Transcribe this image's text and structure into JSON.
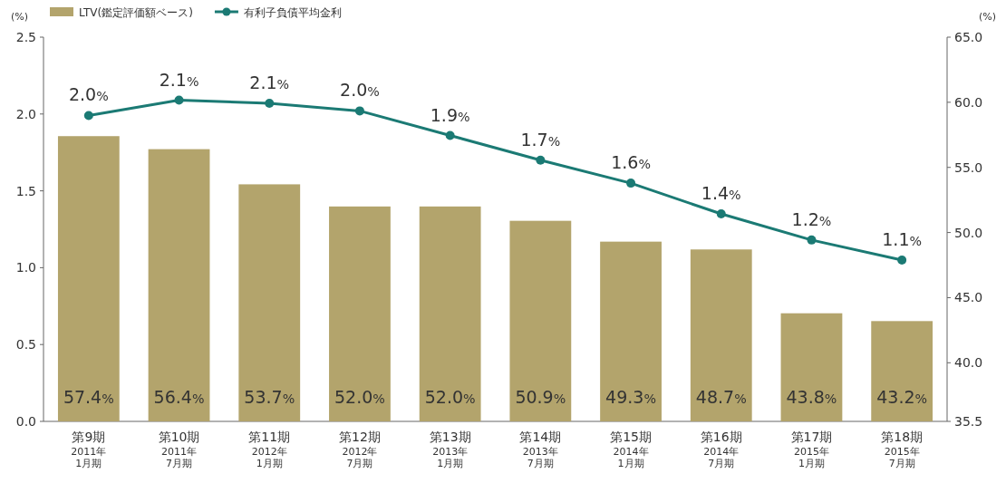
{
  "chart_data": {
    "type": "bar",
    "ylabel": "(%)",
    "y2label": "(%)",
    "categories": [
      "第9期\n2011年\n1月期",
      "第10期\n2011年\n7月期",
      "第11期\n2012年\n1月期",
      "第12期\n2012年\n7月期",
      "第13期\n2013年\n1月期",
      "第14期\n2013年\n7月期",
      "第15期\n2014年\n1月期",
      "第16期\n2014年\n7月期",
      "第17期\n2015年\n1月期",
      "第18期\n2015年\n7月期"
    ],
    "series": [
      {
        "name": "LTV(鑑定評価額ベース)",
        "axis": "y2",
        "color": "#b3a46c",
        "values": [
          57.4,
          56.4,
          53.7,
          52.0,
          52.0,
          50.9,
          49.3,
          48.7,
          43.8,
          43.2
        ],
        "value_labels": [
          "57.4%",
          "56.4%",
          "53.7%",
          "52.0%",
          "52.0%",
          "50.9%",
          "49.3%",
          "48.7%",
          "43.8%",
          "43.2%"
        ]
      },
      {
        "name": "有利子負債平均金利",
        "type": "line",
        "axis": "y",
        "color": "#1b7a74",
        "values": [
          1.99,
          2.09,
          2.07,
          2.02,
          1.86,
          1.7,
          1.55,
          1.35,
          1.18,
          1.05
        ],
        "value_labels": [
          "2.0%",
          "2.1%",
          "2.1%",
          "2.0%",
          "1.9%",
          "1.7%",
          "1.6%",
          "1.4%",
          "1.2%",
          "1.1%"
        ]
      }
    ],
    "marker": "circle",
    "legend": "top left",
    "grid": false,
    "ylim": [
      0,
      2.5
    ],
    "yticks": [
      {
        "value": 0,
        "label": "0.0"
      },
      0.5,
      {
        "value": 1,
        "label": "1.0"
      },
      1.5,
      {
        "value": 2,
        "label": "2.0"
      },
      2.5
    ],
    "y2lim": [
      35.5,
      65
    ],
    "y2ticks": [
      35.5,
      {
        "value": 40,
        "label": "40.0"
      },
      {
        "value": 45,
        "label": "45.0"
      },
      {
        "value": 50,
        "label": "50.0"
      },
      {
        "value": 55,
        "label": "55.0"
      },
      {
        "value": 60,
        "label": "60.0"
      },
      {
        "value": 65,
        "label": "65.0"
      }
    ]
  }
}
